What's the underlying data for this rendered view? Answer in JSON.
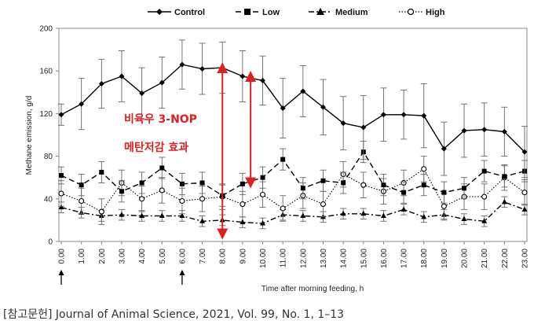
{
  "chart_data": {
    "type": "line",
    "title": "",
    "xlabel": "Time after morning feeding, h",
    "ylabel": "Methane emission, g/d",
    "ylim": [
      0,
      200
    ],
    "yticks": [
      "0",
      "40",
      "80",
      "120",
      "160",
      "200"
    ],
    "x": [
      0,
      1,
      2,
      3,
      4,
      5,
      6,
      7,
      8,
      9,
      10,
      11,
      12,
      13,
      14,
      15,
      16,
      17,
      18,
      19,
      20,
      21,
      22,
      23
    ],
    "xtick_labels": [
      "0.00",
      "1.00",
      "2.00",
      "3.00",
      "4.00",
      "5.00",
      "6.00",
      "7.00",
      "8.00",
      "9.00",
      "10.00",
      "11.00",
      "12.00",
      "13.00",
      "14.00",
      "15.00",
      "16.00",
      "17.00",
      "18.00",
      "19.00",
      "20.00",
      "21.00",
      "22.00",
      "23.00"
    ],
    "grid": false,
    "legend_position": "top",
    "series": [
      {
        "name": "Control",
        "color": "#000000",
        "dash": "solid",
        "marker": "diamond",
        "values": [
          119,
          129,
          148,
          155,
          139,
          149,
          166,
          162,
          163,
          155,
          151,
          125,
          141,
          126,
          111,
          107,
          119,
          119,
          118,
          87,
          104,
          105,
          103,
          84
        ],
        "errors": [
          10,
          24,
          23,
          24,
          24,
          24,
          23,
          24,
          24,
          24,
          23,
          28,
          24,
          26,
          25,
          30,
          25,
          23,
          30,
          25,
          25,
          25,
          23,
          24
        ]
      },
      {
        "name": "Low",
        "color": "#000000",
        "dash": "longdash",
        "marker": "square",
        "values": [
          62,
          53,
          65,
          47,
          55,
          69,
          54,
          55,
          43,
          54,
          60,
          77,
          50,
          57,
          55,
          84,
          53,
          46,
          53,
          46,
          50,
          66,
          61,
          66
        ],
        "errors": [
          8,
          10,
          10,
          10,
          10,
          10,
          10,
          10,
          10,
          10,
          10,
          10,
          10,
          10,
          10,
          10,
          10,
          10,
          10,
          10,
          10,
          10,
          10,
          10
        ]
      },
      {
        "name": "Medium",
        "color": "#000000",
        "dash": "dashdot",
        "marker": "triangle",
        "values": [
          32,
          27,
          24,
          25,
          24,
          24,
          24,
          19,
          20,
          18,
          17,
          25,
          24,
          23,
          26,
          26,
          24,
          30,
          23,
          25,
          21,
          19,
          37,
          30
        ],
        "errors": [
          5,
          5,
          5,
          5,
          5,
          5,
          5,
          5,
          5,
          5,
          5,
          5,
          5,
          5,
          5,
          5,
          5,
          5,
          5,
          5,
          5,
          5,
          5,
          5
        ]
      },
      {
        "name": "High",
        "color": "#000000",
        "dash": "dotted",
        "marker": "circle",
        "values": [
          45,
          38,
          28,
          55,
          40,
          48,
          38,
          40,
          42,
          35,
          44,
          31,
          43,
          35,
          63,
          53,
          47,
          55,
          68,
          33,
          42,
          42,
          60,
          46
        ],
        "errors": [
          12,
          12,
          12,
          12,
          12,
          12,
          12,
          12,
          12,
          12,
          12,
          12,
          12,
          12,
          12,
          12,
          12,
          12,
          12,
          12,
          12,
          12,
          12,
          12
        ]
      }
    ],
    "annotations": {
      "line1": "비육우 3-NOP",
      "line2": "메탄저감 효과",
      "color": "#e02020",
      "arrows": [
        {
          "x": 8,
          "from": 163,
          "to": 7
        },
        {
          "x": 9.4,
          "from": 155,
          "to": 55
        }
      ]
    },
    "feeding_arrows_x": [
      0,
      6
    ]
  },
  "caption": "[참고문헌] Journal of Animal Science, 2021, Vol. 99, No. 1, 1–13"
}
